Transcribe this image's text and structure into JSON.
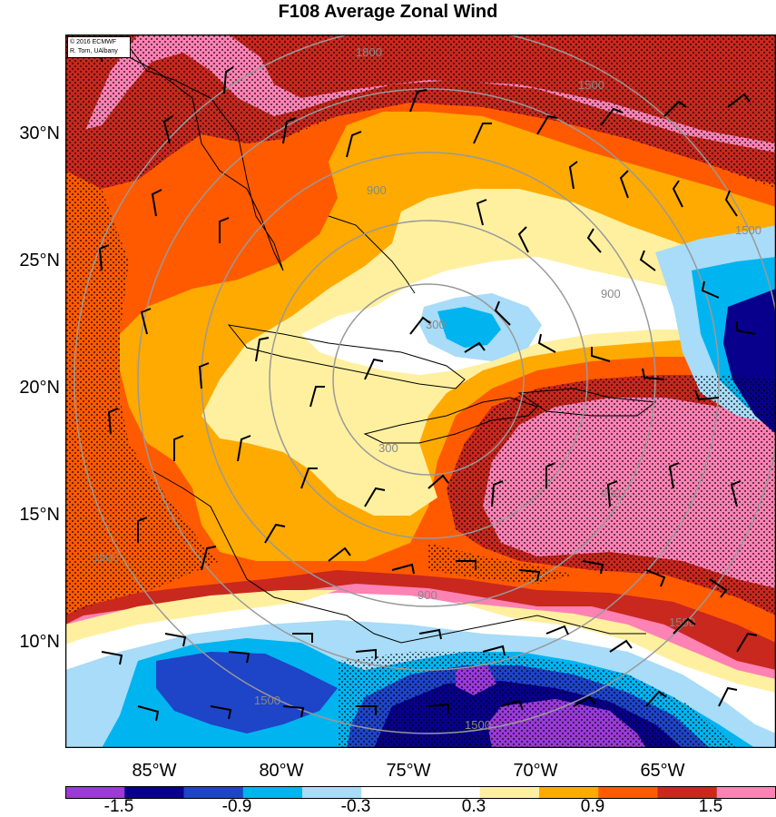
{
  "title": "F108 Average Zonal Wind",
  "credit": {
    "line1": "© 2016 ECMWF",
    "line2": "R. Torn, UAlbany"
  },
  "latitude_labels": [
    "30°N",
    "25°N",
    "20°N",
    "15°N",
    "10°N"
  ],
  "longitude_labels": [
    "85°W",
    "80°W",
    "75°W",
    "70°W",
    "65°W"
  ],
  "colorbar": {
    "colors": [
      "#9a3ad8",
      "#08008c",
      "#1e44c8",
      "#00b4f0",
      "#a8dcf8",
      "#ffffff",
      "#ffffff",
      "#fff0a0",
      "#ffaa00",
      "#ff5a00",
      "#c8281e",
      "#ff82b4"
    ],
    "labels": [
      "-1.5",
      "-0.9",
      "-0.3",
      "0.3",
      "0.9",
      "1.5"
    ]
  },
  "contour_labels": [
    "1800",
    "1500",
    "900",
    "300",
    "1500",
    "900",
    "300",
    "900",
    "1500",
    "900",
    "1500",
    "1500",
    "1500"
  ],
  "palette": {
    "pink": "#ff82b4",
    "darkred": "#c8281e",
    "redorange": "#ff5a00",
    "orange": "#ffaa00",
    "yellow": "#fff0a0",
    "white": "#ffffff",
    "lightblue": "#a8dcf8",
    "cyan": "#00b4f0",
    "blue": "#1e44c8",
    "navy": "#08008c",
    "purple": "#9a3ad8",
    "contour": "#999999"
  }
}
